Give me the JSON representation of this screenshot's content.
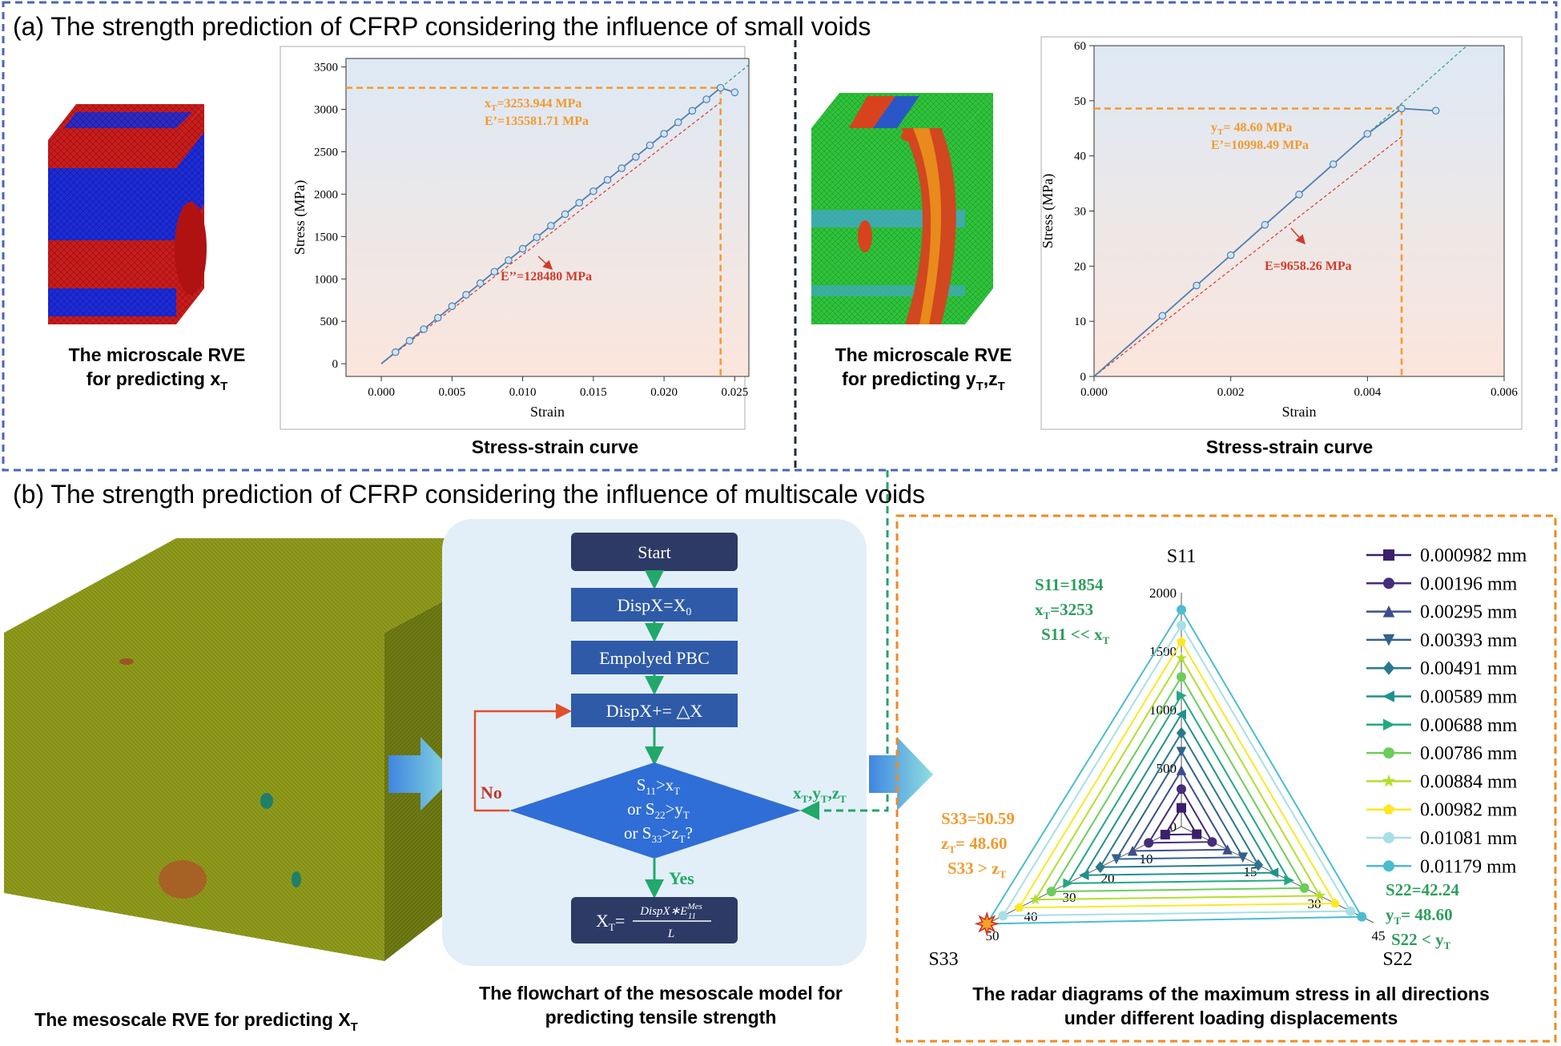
{
  "panel_a": {
    "title": "(a) The strength prediction of CFRP considering the influence of small voids",
    "left": {
      "caption_line1": "The microscale RVE",
      "caption_line2": "for predicting x",
      "caption_sub": "T",
      "plot_caption": "Stress-strain curve"
    },
    "right": {
      "caption_line1": "The microscale RVE",
      "caption_line2": "for predicting y",
      "caption_sub1": "T",
      "caption_mid": ",z",
      "caption_sub2": "T",
      "plot_caption": "Stress-strain curve"
    }
  },
  "panel_b": {
    "title": "(b) The strength prediction of CFRP considering the influence of multiscale voids",
    "meso_caption": "The mesoscale RVE for predicting X",
    "meso_caption_sub": "T",
    "flow_caption_line1": "The flowchart of the mesoscale model for",
    "flow_caption_line2": "predicting tensile strength",
    "radar_caption_line1": "The radar diagrams of the maximum stress in all directions",
    "radar_caption_line2": "under different loading displacements"
  },
  "flowchart": {
    "start": "Start",
    "disp_init": "DispX=X",
    "disp_init_sub": "0",
    "pbc": "Empolyed PBC",
    "increment": "DispX+= △X",
    "cond1": "S",
    "cond1_sub": "11",
    "cond1_rest": ">x",
    "cond1_rest_sub": "T",
    "cond2_pre": "or S",
    "cond2_sub": "22",
    "cond2_rest": ">y",
    "cond2_rest_sub": "T",
    "cond3_pre": "or S",
    "cond3_sub": "33",
    "cond3_rest": ">z",
    "cond3_rest_sub": "T",
    "cond3_q": "?",
    "no": "No",
    "yes": "Yes",
    "result_lhs": "X",
    "result_lhs_sub": "T",
    "result_num": "DispX∗E",
    "result_num_sup": "Mes",
    "result_num_sub": "11",
    "result_den": "L",
    "side_label": "x",
    "side_label_rest1": ",y",
    "side_label_rest2": ",z",
    "side_label_sub": "T"
  },
  "colors": {
    "dash_blue": "#4a66b8",
    "dash_navy": "#1f2a44",
    "dash_orange": "#ef8a1f",
    "dash_green": "#27a36a",
    "flow_box": "#2e5aa8",
    "flow_start": "#2d3a66",
    "flow_diamond": "#2f6ed6",
    "flow_bg": "#e3eff8",
    "arrow_green": "#22a86a",
    "arrow_red": "#e0502a",
    "annot_orange": "#f29a2e",
    "annot_red": "#d23a2a",
    "annot_green": "#2c9e5c",
    "curve_blue": "#4f7fb2",
    "marker_fill": "#cfe4f3"
  },
  "chart_data": [
    {
      "type": "line",
      "xlabel": "Strain",
      "ylabel": "Stress (MPa)",
      "xlim": [
        -0.0025,
        0.026
      ],
      "ylim": [
        -150,
        3600
      ],
      "xticks": [
        0.0,
        0.005,
        0.01,
        0.015,
        0.02,
        0.025
      ],
      "xtick_labels": [
        "0.000",
        "0.005",
        "0.010",
        "0.015",
        "0.020",
        "0.025"
      ],
      "yticks": [
        0,
        500,
        1000,
        1500,
        2000,
        2500,
        3000,
        3500
      ],
      "ytick_labels": [
        "0",
        "500",
        "1000",
        "1500",
        "2000",
        "2500",
        "3000",
        "3500"
      ],
      "series": [
        {
          "x": [
            0.0,
            0.001,
            0.002,
            0.003,
            0.004,
            0.005,
            0.006,
            0.007,
            0.008,
            0.009,
            0.01,
            0.011,
            0.012,
            0.013,
            0.014,
            0.015,
            0.016,
            0.017,
            0.018,
            0.019,
            0.02,
            0.021,
            0.022,
            0.023,
            0.024,
            0.025
          ],
          "y": [
            0,
            136,
            271,
            407,
            542,
            678,
            813,
            949,
            1085,
            1220,
            1356,
            1491,
            1627,
            1763,
            1898,
            2034,
            2169,
            2305,
            2440,
            2576,
            2712,
            2847,
            2983,
            3118,
            3254,
            3200
          ]
        }
      ],
      "annotations": {
        "strength": "x",
        "strength_sub": "T",
        "strength_value": "=3253.944 MPa",
        "modulus": "E’=135581.71 MPa",
        "modulus2": "E’’=128480 MPa"
      },
      "peak": {
        "x": 0.024,
        "y": 3254
      },
      "secant_slope": 128480,
      "tangent_slope": 135581.71
    },
    {
      "type": "line",
      "xlabel": "Strain",
      "ylabel": "Stress (MPa)",
      "xlim": [
        0.0,
        0.006
      ],
      "ylim": [
        0,
        60
      ],
      "xticks": [
        0.0,
        0.002,
        0.004,
        0.006
      ],
      "xtick_labels": [
        "0.000",
        "0.002",
        "0.004",
        "0.006"
      ],
      "yticks": [
        0,
        10,
        20,
        30,
        40,
        50,
        60
      ],
      "ytick_labels": [
        "0",
        "10",
        "20",
        "30",
        "40",
        "50",
        "60"
      ],
      "series": [
        {
          "x": [
            0.0,
            0.001,
            0.0015,
            0.002,
            0.0025,
            0.003,
            0.0035,
            0.004,
            0.0045,
            0.005
          ],
          "y": [
            0,
            11.0,
            16.5,
            22.0,
            27.5,
            33.0,
            38.5,
            44.0,
            48.6,
            48.2
          ]
        }
      ],
      "annotations": {
        "strength": "y",
        "strength_sub": "T",
        "strength_value": "= 48.60 MPa",
        "modulus": "E’=10998.49 MPa",
        "modulus2": "E=9658.26 MPa"
      },
      "peak": {
        "x": 0.0045,
        "y": 48.6
      },
      "secant_slope": 9658.26,
      "tangent_slope": 10998.49
    },
    {
      "type": "radar",
      "axes": [
        "S11",
        "S22",
        "S33"
      ],
      "axis_ticks": {
        "S11": [
          0,
          500,
          1000,
          1500,
          2000
        ],
        "S22": [
          15,
          30,
          45
        ],
        "S33": [
          10,
          20,
          30,
          40,
          50
        ]
      },
      "axis_max": {
        "S11": 2000,
        "S22": 45,
        "S33": 50
      },
      "series": [
        {
          "name": "0.000982 mm",
          "marker": "square",
          "color": "#3b1f6b",
          "values": [
            160,
            3.6,
            4.2
          ]
        },
        {
          "name": "0.00196 mm",
          "marker": "circle",
          "color": "#472d7b",
          "values": [
            320,
            7.2,
            8.5
          ]
        },
        {
          "name": "0.00295 mm",
          "marker": "triangle-up",
          "color": "#3b4f8c",
          "values": [
            480,
            10.8,
            12.7
          ]
        },
        {
          "name": "0.00393 mm",
          "marker": "triangle-down",
          "color": "#33638d",
          "values": [
            640,
            14.4,
            16.9
          ]
        },
        {
          "name": "0.00491 mm",
          "marker": "diamond",
          "color": "#2a788e",
          "values": [
            800,
            18.0,
            21.1
          ]
        },
        {
          "name": "0.00589 mm",
          "marker": "triangle-left",
          "color": "#21918c",
          "values": [
            960,
            21.6,
            25.3
          ]
        },
        {
          "name": "0.00688 mm",
          "marker": "triangle-right",
          "color": "#22a884",
          "values": [
            1120,
            25.2,
            29.5
          ]
        },
        {
          "name": "0.00786 mm",
          "marker": "hexagon",
          "color": "#6ccd5a",
          "values": [
            1280,
            28.8,
            33.8
          ]
        },
        {
          "name": "0.00884 mm",
          "marker": "star",
          "color": "#b5de2b",
          "values": [
            1440,
            32.4,
            38.0
          ]
        },
        {
          "name": "0.00982 mm",
          "marker": "pentagon",
          "color": "#fde725",
          "values": [
            1580,
            36.0,
            42.2
          ]
        },
        {
          "name": "0.01081 mm",
          "marker": "circle",
          "color": "#a8dfe6",
          "values": [
            1720,
            39.6,
            46.4
          ]
        },
        {
          "name": "0.01179 mm",
          "marker": "hexagon",
          "color": "#4bbcd1",
          "values": [
            1854,
            42.24,
            50.59
          ]
        }
      ],
      "annotations": {
        "s11_a": "S11=1854",
        "s11_b": "x",
        "s11_b_sub": "T",
        "s11_b_val": "=3253",
        "s11_c": "S11 << x",
        "s11_c_sub": "T",
        "s33_a": "S33=50.59",
        "s33_b": "z",
        "s33_b_sub": "T",
        "s33_b_val": "= 48.60",
        "s33_c": "S33 > z",
        "s33_c_sub": "T",
        "s22_a": "S22=42.24",
        "s22_b": "y",
        "s22_b_sub": "T",
        "s22_b_val": "= 48.60",
        "s22_c": "S22 < y",
        "s22_c_sub": "T"
      }
    }
  ]
}
